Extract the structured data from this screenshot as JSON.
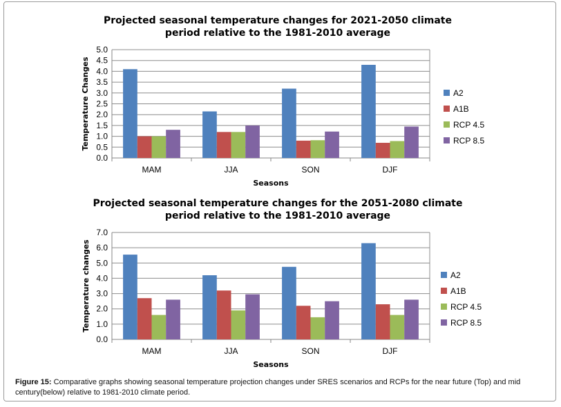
{
  "chart_data": [
    {
      "type": "bar",
      "title": "Projected seasonal temperature changes for 2021-2050 climate period relative to the 1981-2010 average",
      "title_lines": [
        "Projected seasonal temperature changes for 2021-2050 climate",
        "period relative to the 1981-2010 average"
      ],
      "xlabel": "Seasons",
      "ylabel": "Temperature Changes",
      "ylim": [
        0,
        5
      ],
      "yticks": [
        "0.0",
        "0.5",
        "1.0",
        "1.5",
        "2.0",
        "2.5",
        "3.0",
        "3.5",
        "4.0",
        "4.5",
        "5.0"
      ],
      "grid": true,
      "legend_position": "right",
      "categories": [
        "MAM",
        "JJA",
        "SON",
        "DJF"
      ],
      "series": [
        {
          "name": "A2",
          "color": "#4f81bd",
          "values": [
            4.1,
            2.15,
            3.2,
            4.3
          ]
        },
        {
          "name": "A1B",
          "color": "#c0504d",
          "values": [
            1.0,
            1.2,
            0.8,
            0.7
          ]
        },
        {
          "name": "RCP 4.5",
          "color": "#9bbb59",
          "values": [
            1.0,
            1.2,
            0.82,
            0.78
          ]
        },
        {
          "name": "RCP 8.5",
          "color": "#8064a2",
          "values": [
            1.3,
            1.5,
            1.22,
            1.45
          ]
        }
      ]
    },
    {
      "type": "bar",
      "title": "Projected seasonal temperature changes for the 2051-2080 climate period relative to the 1981-2010 average",
      "title_lines": [
        "Projected seasonal temperature changes for the 2051-2080 climate",
        "period relative to the 1981-2010 average"
      ],
      "xlabel": "Seasons",
      "ylabel": "Temperature changes",
      "ylim": [
        0,
        7
      ],
      "yticks": [
        "0.0",
        "1.0",
        "2.0",
        "3.0",
        "4.0",
        "5.0",
        "6.0",
        "7.0"
      ],
      "grid": true,
      "legend_position": "right",
      "categories": [
        "MAM",
        "JJA",
        "SON",
        "DJF"
      ],
      "series": [
        {
          "name": "A2",
          "color": "#4f81bd",
          "values": [
            5.55,
            4.2,
            4.75,
            6.3
          ]
        },
        {
          "name": "A1B",
          "color": "#c0504d",
          "values": [
            2.7,
            3.2,
            2.2,
            2.3
          ]
        },
        {
          "name": "RCP 4.5",
          "color": "#9bbb59",
          "values": [
            1.6,
            1.9,
            1.45,
            1.6
          ]
        },
        {
          "name": "RCP 8.5",
          "color": "#8064a2",
          "values": [
            2.6,
            2.95,
            2.5,
            2.6
          ]
        }
      ]
    }
  ],
  "caption": {
    "label": "Figure 15:",
    "text": " Comparative graphs showing seasonal temperature projection changes under SRES scenarios and RCPs for the near future (Top) and mid century(below) relative to 1981-2010 climate period."
  }
}
